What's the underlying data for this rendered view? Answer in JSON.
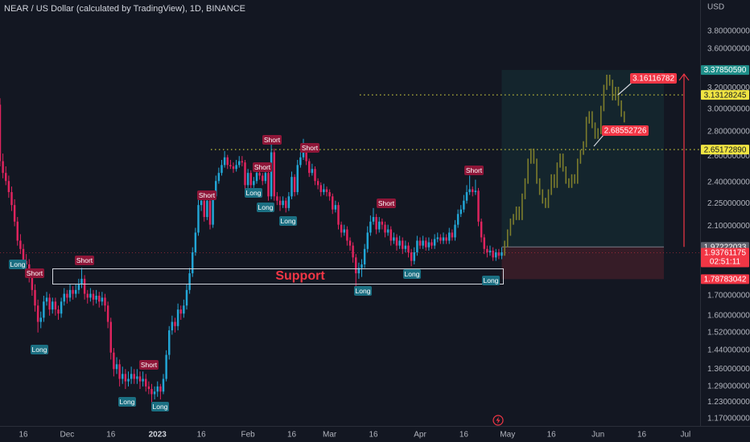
{
  "chart_data": {
    "type": "candlestick",
    "title": "NEAR / US Dollar (calculated by TradingView), 1D, BINANCE",
    "currency": "USD",
    "log_scale": true,
    "grid": false,
    "up_color": "#22a6d6",
    "down_color": "#e0245e",
    "projection_color": "#7d7d2c",
    "ylim": [
      1.144,
      4.18
    ],
    "yticks": [
      {
        "value": 3.8,
        "label": "3.80000000"
      },
      {
        "value": 3.6,
        "label": "3.60000000"
      },
      {
        "value": 3.2,
        "label": "3.20000000"
      },
      {
        "value": 3.0,
        "label": "3.00000000"
      },
      {
        "value": 2.8,
        "label": "2.80000000"
      },
      {
        "value": 2.6,
        "label": "2.60000000"
      },
      {
        "value": 2.4,
        "label": "2.40000000"
      },
      {
        "value": 2.25,
        "label": "2.25000000"
      },
      {
        "value": 2.1,
        "label": "2.10000000"
      },
      {
        "value": 1.7,
        "label": "1.70000000"
      },
      {
        "value": 1.6,
        "label": "1.60000000"
      },
      {
        "value": 1.52,
        "label": "1.52000000"
      },
      {
        "value": 1.44,
        "label": "1.44000000"
      },
      {
        "value": 1.36,
        "label": "1.36000000"
      },
      {
        "value": 1.29,
        "label": "1.29000000"
      },
      {
        "value": 1.23,
        "label": "1.23000000"
      },
      {
        "value": 1.17,
        "label": "1.17000000"
      }
    ],
    "xlim": [
      0,
      240
    ],
    "xticks": [
      {
        "value": 8,
        "label": "16"
      },
      {
        "value": 23,
        "label": "Dec"
      },
      {
        "value": 38,
        "label": "16"
      },
      {
        "value": 54,
        "label": "2023"
      },
      {
        "value": 69,
        "label": "16"
      },
      {
        "value": 85,
        "label": "Feb"
      },
      {
        "value": 100,
        "label": "16"
      },
      {
        "value": 113,
        "label": "Mar"
      },
      {
        "value": 128,
        "label": "16"
      },
      {
        "value": 144,
        "label": "Apr"
      },
      {
        "value": 159,
        "label": "16"
      },
      {
        "value": 174,
        "label": "May"
      },
      {
        "value": 189,
        "label": "16"
      },
      {
        "value": 205,
        "label": "Jun"
      },
      {
        "value": 220,
        "label": "16"
      },
      {
        "value": 235,
        "label": "Jul"
      }
    ],
    "candles": [
      [
        3.04,
        3.1,
        2.52,
        2.56
      ],
      [
        2.56,
        2.62,
        2.43,
        2.47
      ],
      [
        2.47,
        2.52,
        2.38,
        2.41
      ],
      [
        2.41,
        2.45,
        2.29,
        2.33
      ],
      [
        2.33,
        2.37,
        2.2,
        2.24
      ],
      [
        2.24,
        2.28,
        2.1,
        2.13
      ],
      [
        2.13,
        2.16,
        1.98,
        2.01
      ],
      [
        2.01,
        2.05,
        1.93,
        1.96
      ],
      [
        1.96,
        1.99,
        1.86,
        1.89
      ],
      [
        1.89,
        1.93,
        1.84,
        1.87
      ],
      [
        1.87,
        1.9,
        1.77,
        1.8
      ],
      [
        1.8,
        1.83,
        1.7,
        1.73
      ],
      [
        1.73,
        1.76,
        1.62,
        1.65
      ],
      [
        1.65,
        1.68,
        1.52,
        1.57
      ],
      [
        1.57,
        1.62,
        1.54,
        1.59
      ],
      [
        1.59,
        1.7,
        1.57,
        1.67
      ],
      [
        1.67,
        1.72,
        1.65,
        1.69
      ],
      [
        1.69,
        1.71,
        1.6,
        1.63
      ],
      [
        1.63,
        1.69,
        1.61,
        1.67
      ],
      [
        1.67,
        1.69,
        1.6,
        1.63
      ],
      [
        1.63,
        1.65,
        1.58,
        1.61
      ],
      [
        1.61,
        1.69,
        1.59,
        1.67
      ],
      [
        1.67,
        1.74,
        1.65,
        1.71
      ],
      [
        1.71,
        1.73,
        1.66,
        1.69
      ],
      [
        1.69,
        1.76,
        1.67,
        1.73
      ],
      [
        1.73,
        1.75,
        1.68,
        1.71
      ],
      [
        1.71,
        1.76,
        1.69,
        1.73
      ],
      [
        1.73,
        1.79,
        1.71,
        1.76
      ],
      [
        1.76,
        1.85,
        1.74,
        1.79
      ],
      [
        1.79,
        1.81,
        1.68,
        1.71
      ],
      [
        1.71,
        1.73,
        1.66,
        1.69
      ],
      [
        1.69,
        1.74,
        1.67,
        1.71
      ],
      [
        1.71,
        1.73,
        1.65,
        1.68
      ],
      [
        1.68,
        1.73,
        1.66,
        1.7
      ],
      [
        1.7,
        1.72,
        1.64,
        1.67
      ],
      [
        1.67,
        1.72,
        1.65,
        1.69
      ],
      [
        1.69,
        1.71,
        1.62,
        1.65
      ],
      [
        1.65,
        1.67,
        1.54,
        1.57
      ],
      [
        1.57,
        1.59,
        1.4,
        1.43
      ],
      [
        1.43,
        1.45,
        1.33,
        1.36
      ],
      [
        1.36,
        1.41,
        1.34,
        1.38
      ],
      [
        1.38,
        1.4,
        1.29,
        1.32
      ],
      [
        1.32,
        1.37,
        1.3,
        1.34
      ],
      [
        1.34,
        1.36,
        1.28,
        1.31
      ],
      [
        1.31,
        1.35,
        1.29,
        1.32
      ],
      [
        1.32,
        1.37,
        1.3,
        1.34
      ],
      [
        1.34,
        1.36,
        1.3,
        1.32
      ],
      [
        1.32,
        1.36,
        1.3,
        1.33
      ],
      [
        1.33,
        1.35,
        1.28,
        1.31
      ],
      [
        1.31,
        1.35,
        1.29,
        1.32
      ],
      [
        1.32,
        1.34,
        1.27,
        1.29
      ],
      [
        1.29,
        1.31,
        1.26,
        1.28
      ],
      [
        1.28,
        1.3,
        1.23,
        1.26
      ],
      [
        1.26,
        1.29,
        1.24,
        1.27
      ],
      [
        1.27,
        1.31,
        1.25,
        1.29
      ],
      [
        1.29,
        1.3,
        1.24,
        1.27
      ],
      [
        1.27,
        1.34,
        1.26,
        1.32
      ],
      [
        1.32,
        1.44,
        1.31,
        1.42
      ],
      [
        1.42,
        1.55,
        1.4,
        1.53
      ],
      [
        1.53,
        1.6,
        1.51,
        1.57
      ],
      [
        1.57,
        1.59,
        1.52,
        1.55
      ],
      [
        1.55,
        1.66,
        1.53,
        1.63
      ],
      [
        1.63,
        1.65,
        1.58,
        1.61
      ],
      [
        1.61,
        1.68,
        1.59,
        1.65
      ],
      [
        1.65,
        1.76,
        1.63,
        1.73
      ],
      [
        1.73,
        1.85,
        1.71,
        1.82
      ],
      [
        1.82,
        1.97,
        1.8,
        1.94
      ],
      [
        1.94,
        2.09,
        1.92,
        2.06
      ],
      [
        2.06,
        2.28,
        2.04,
        2.24
      ],
      [
        2.24,
        2.32,
        2.2,
        2.27
      ],
      [
        2.27,
        2.3,
        2.13,
        2.16
      ],
      [
        2.16,
        2.31,
        2.14,
        2.27
      ],
      [
        2.27,
        2.29,
        2.08,
        2.11
      ],
      [
        2.11,
        2.34,
        2.09,
        2.3
      ],
      [
        2.3,
        2.45,
        2.28,
        2.41
      ],
      [
        2.41,
        2.51,
        2.39,
        2.47
      ],
      [
        2.47,
        2.57,
        2.45,
        2.53
      ],
      [
        2.53,
        2.64,
        2.51,
        2.59
      ],
      [
        2.59,
        2.61,
        2.5,
        2.53
      ],
      [
        2.53,
        2.57,
        2.5,
        2.52
      ],
      [
        2.52,
        2.55,
        2.47,
        2.5
      ],
      [
        2.5,
        2.57,
        2.48,
        2.53
      ],
      [
        2.53,
        2.6,
        2.51,
        2.56
      ],
      [
        2.56,
        2.6,
        2.52,
        2.55
      ],
      [
        2.55,
        2.57,
        2.35,
        2.38
      ],
      [
        2.38,
        2.5,
        2.36,
        2.47
      ],
      [
        2.47,
        2.49,
        2.35,
        2.38
      ],
      [
        2.38,
        2.44,
        2.36,
        2.41
      ],
      [
        2.41,
        2.52,
        2.39,
        2.47
      ],
      [
        2.47,
        2.5,
        2.42,
        2.45
      ],
      [
        2.45,
        2.47,
        2.38,
        2.41
      ],
      [
        2.41,
        2.51,
        2.39,
        2.47
      ],
      [
        2.47,
        2.49,
        2.27,
        2.3
      ],
      [
        2.3,
        2.72,
        2.28,
        2.63
      ],
      [
        2.63,
        2.66,
        2.27,
        2.3
      ],
      [
        2.3,
        2.33,
        2.24,
        2.27
      ],
      [
        2.27,
        2.3,
        2.2,
        2.24
      ],
      [
        2.24,
        2.3,
        2.22,
        2.27
      ],
      [
        2.27,
        2.29,
        2.19,
        2.22
      ],
      [
        2.22,
        2.33,
        2.2,
        2.3
      ],
      [
        2.3,
        2.48,
        2.28,
        2.44
      ],
      [
        2.44,
        2.46,
        2.3,
        2.33
      ],
      [
        2.33,
        2.57,
        2.31,
        2.53
      ],
      [
        2.53,
        2.63,
        2.51,
        2.59
      ],
      [
        2.59,
        2.74,
        2.57,
        2.63
      ],
      [
        2.63,
        2.65,
        2.53,
        2.56
      ],
      [
        2.56,
        2.58,
        2.44,
        2.47
      ],
      [
        2.47,
        2.54,
        2.45,
        2.5
      ],
      [
        2.5,
        2.52,
        2.38,
        2.41
      ],
      [
        2.41,
        2.43,
        2.35,
        2.38
      ],
      [
        2.38,
        2.4,
        2.3,
        2.33
      ],
      [
        2.33,
        2.39,
        2.31,
        2.35
      ],
      [
        2.35,
        2.37,
        2.3,
        2.33
      ],
      [
        2.33,
        2.35,
        2.27,
        2.3
      ],
      [
        2.3,
        2.32,
        2.18,
        2.21
      ],
      [
        2.21,
        2.27,
        2.19,
        2.24
      ],
      [
        2.24,
        2.26,
        2.08,
        2.11
      ],
      [
        2.11,
        2.13,
        2.03,
        2.06
      ],
      [
        2.06,
        2.11,
        2.04,
        2.08
      ],
      [
        2.08,
        2.1,
        1.98,
        2.01
      ],
      [
        2.01,
        2.03,
        1.95,
        1.98
      ],
      [
        1.98,
        2.0,
        1.88,
        1.91
      ],
      [
        1.91,
        1.93,
        1.72,
        1.82
      ],
      [
        1.82,
        1.88,
        1.79,
        1.85
      ],
      [
        1.85,
        1.9,
        1.8,
        1.87
      ],
      [
        1.87,
        1.99,
        1.85,
        1.96
      ],
      [
        1.96,
        2.1,
        1.94,
        2.06
      ],
      [
        2.06,
        2.17,
        2.04,
        2.13
      ],
      [
        2.13,
        2.22,
        2.11,
        2.16
      ],
      [
        2.16,
        2.18,
        2.05,
        2.08
      ],
      [
        2.08,
        2.16,
        2.06,
        2.13
      ],
      [
        2.13,
        2.15,
        2.08,
        2.11
      ],
      [
        2.11,
        2.13,
        2.03,
        2.06
      ],
      [
        2.06,
        2.11,
        2.04,
        2.08
      ],
      [
        2.08,
        2.1,
        1.98,
        2.01
      ],
      [
        2.01,
        2.06,
        1.99,
        2.03
      ],
      [
        2.03,
        2.05,
        1.95,
        1.98
      ],
      [
        1.98,
        2.04,
        1.96,
        2.01
      ],
      [
        2.01,
        2.03,
        1.93,
        1.96
      ],
      [
        1.96,
        2.01,
        1.94,
        1.98
      ],
      [
        1.98,
        2.0,
        1.91,
        1.94
      ],
      [
        1.94,
        1.96,
        1.86,
        1.89
      ],
      [
        1.89,
        1.97,
        1.87,
        1.94
      ],
      [
        1.94,
        2.04,
        1.92,
        2.01
      ],
      [
        2.01,
        2.03,
        1.96,
        1.98
      ],
      [
        1.98,
        2.04,
        1.96,
        2.01
      ],
      [
        2.01,
        2.03,
        1.95,
        1.97
      ],
      [
        1.97,
        2.03,
        1.95,
        2.0
      ],
      [
        2.0,
        2.02,
        1.96,
        1.98
      ],
      [
        1.98,
        2.05,
        1.96,
        2.02
      ],
      [
        2.02,
        2.06,
        2.0,
        2.03
      ],
      [
        2.03,
        2.05,
        1.99,
        2.01
      ],
      [
        2.01,
        2.06,
        1.99,
        2.03
      ],
      [
        2.03,
        2.05,
        1.99,
        2.01
      ],
      [
        2.01,
        2.09,
        1.99,
        2.06
      ],
      [
        2.06,
        2.08,
        2.01,
        2.03
      ],
      [
        2.03,
        2.14,
        2.01,
        2.11
      ],
      [
        2.11,
        2.21,
        2.09,
        2.18
      ],
      [
        2.18,
        2.24,
        2.16,
        2.21
      ],
      [
        2.21,
        2.31,
        2.19,
        2.27
      ],
      [
        2.27,
        2.38,
        2.25,
        2.33
      ],
      [
        2.33,
        2.45,
        2.31,
        2.35
      ],
      [
        2.35,
        2.37,
        2.3,
        2.33
      ],
      [
        2.33,
        2.42,
        2.31,
        2.34
      ],
      [
        2.34,
        2.36,
        2.1,
        2.13
      ],
      [
        2.13,
        2.15,
        2.0,
        2.03
      ],
      [
        2.03,
        2.05,
        1.93,
        1.96
      ],
      [
        1.96,
        1.98,
        1.91,
        1.94
      ],
      [
        1.94,
        1.98,
        1.92,
        1.95
      ],
      [
        1.95,
        1.97,
        1.89,
        1.91
      ],
      [
        1.91,
        1.96,
        1.89,
        1.94
      ],
      [
        1.94,
        1.96,
        1.9,
        1.92
      ],
      [
        1.92,
        1.97,
        1.9,
        1.94
      ]
    ],
    "projection": [
      [
        1.92,
        2.01
      ],
      [
        1.97,
        2.08
      ],
      [
        2.04,
        2.15
      ],
      [
        2.11,
        2.18
      ],
      [
        2.14,
        2.23
      ],
      [
        2.14,
        2.23
      ],
      [
        2.14,
        2.32
      ],
      [
        2.28,
        2.43
      ],
      [
        2.39,
        2.58
      ],
      [
        2.54,
        2.66
      ],
      [
        2.54,
        2.66
      ],
      [
        2.39,
        2.58
      ],
      [
        2.31,
        2.43
      ],
      [
        2.25,
        2.35
      ],
      [
        2.22,
        2.29
      ],
      [
        2.22,
        2.35
      ],
      [
        2.31,
        2.46
      ],
      [
        2.36,
        2.46
      ],
      [
        2.36,
        2.55
      ],
      [
        2.51,
        2.62
      ],
      [
        2.48,
        2.62
      ],
      [
        2.39,
        2.52
      ],
      [
        2.36,
        2.43
      ],
      [
        2.36,
        2.46
      ],
      [
        2.39,
        2.46
      ],
      [
        2.39,
        2.58
      ],
      [
        2.54,
        2.65
      ],
      [
        2.61,
        2.72
      ],
      [
        2.67,
        2.93
      ],
      [
        2.87,
        2.98
      ],
      [
        2.83,
        2.98
      ],
      [
        2.74,
        2.88
      ],
      [
        2.74,
        2.83
      ],
      [
        2.78,
        3.03
      ],
      [
        2.98,
        3.23
      ],
      [
        3.18,
        3.33
      ],
      [
        3.22,
        3.33
      ],
      [
        3.08,
        3.28
      ],
      [
        3.08,
        3.21
      ],
      [
        3.03,
        3.21
      ],
      [
        2.93,
        3.08
      ],
      [
        2.88,
        2.98
      ]
    ],
    "position": {
      "target": {
        "value": 3.3785059,
        "label": "3.37850590",
        "color": "#1f8f8a"
      },
      "entry": {
        "value": 1.97222033,
        "label": "1.97222033",
        "color": "#5d606b"
      },
      "stop": {
        "value": 1.78783042,
        "label": "1.78783042",
        "color": "#f23645"
      }
    },
    "levels": [
      {
        "value": 3.13128245,
        "label": "3.13128245",
        "color": "#f0e442"
      },
      {
        "value": 2.6517289,
        "label": "2.65172890",
        "color": "#f0e442"
      }
    ],
    "last_price": {
      "value": 1.93761175,
      "label": "1.93761175",
      "countdown": "02:51:11",
      "color": "#f23645"
    },
    "callouts": [
      3.16116782,
      2.68552726
    ],
    "support_label": "Support",
    "signals": [
      "Long",
      "Short",
      "Long",
      "Short",
      "Long",
      "Short",
      "Long",
      "Short",
      "Long",
      "Short",
      "Long",
      "Short",
      "Long",
      "Short",
      "Long",
      "Short",
      "Long",
      "Short",
      "Long"
    ]
  }
}
